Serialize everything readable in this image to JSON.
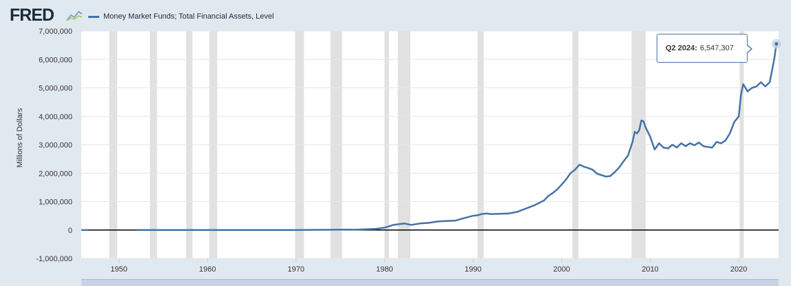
{
  "header": {
    "logo_text": "FRED",
    "logo_icon": "line-chart-icon"
  },
  "chart_data": {
    "type": "line",
    "title": "",
    "xlabel": "",
    "ylabel": "Millions of Dollars",
    "xlim": [
      1945.75,
      2024.5
    ],
    "ylim": [
      -1000000,
      7000000
    ],
    "y_ticks": [
      -1000000,
      0,
      1000000,
      2000000,
      3000000,
      4000000,
      5000000,
      6000000,
      7000000
    ],
    "y_tick_labels": [
      "-1,000,000",
      "0",
      "1,000,000",
      "2,000,000",
      "3,000,000",
      "4,000,000",
      "5,000,000",
      "6,000,000",
      "7,000,000"
    ],
    "x_ticks": [
      1950,
      1960,
      1970,
      1980,
      1990,
      2000,
      2010,
      2020
    ],
    "x_tick_labels": [
      "1950",
      "1960",
      "1970",
      "1980",
      "1990",
      "2000",
      "2010",
      "2020"
    ],
    "grid": true,
    "legend_position": "top-left",
    "series": [
      {
        "name": "Money Market Funds; Total Financial Assets, Level",
        "color": "#4572a7",
        "x": [
          1945.75,
          1946.5,
          1952.0,
          1960,
          1970,
          1975,
          1977,
          1979,
          1980,
          1981,
          1981.5,
          1982.25,
          1983,
          1984,
          1985,
          1986,
          1987,
          1988,
          1989,
          1990,
          1990.5,
          1991,
          1991.5,
          1992,
          1993,
          1994,
          1995,
          1996,
          1997,
          1998,
          1998.5,
          1999,
          1999.5,
          2000,
          2000.5,
          2001,
          2001.5,
          2002,
          2002.5,
          2003,
          2003.5,
          2004,
          2005,
          2005.5,
          2006,
          2006.5,
          2007,
          2007.5,
          2008,
          2008.25,
          2008.5,
          2008.75,
          2009,
          2009.25,
          2009.5,
          2010,
          2010.5,
          2011,
          2011.5,
          2012,
          2012.5,
          2013,
          2013.5,
          2014,
          2014.5,
          2015,
          2015.5,
          2016,
          2016.5,
          2017,
          2017.5,
          2018,
          2018.5,
          2019,
          2019.5,
          2020,
          2020.25,
          2020.5,
          2021,
          2021.5,
          2022,
          2022.5,
          2023,
          2023.5,
          2024,
          2024.25
        ],
        "y": [
          0,
          0,
          0,
          0,
          0,
          10000,
          15000,
          40000,
          80000,
          180000,
          200000,
          230000,
          180000,
          230000,
          250000,
          300000,
          320000,
          330000,
          420000,
          500000,
          520000,
          560000,
          580000,
          560000,
          570000,
          580000,
          640000,
          760000,
          880000,
          1040000,
          1200000,
          1300000,
          1430000,
          1600000,
          1780000,
          2000000,
          2120000,
          2300000,
          2230000,
          2180000,
          2120000,
          1980000,
          1880000,
          1900000,
          2040000,
          2200000,
          2420000,
          2620000,
          3100000,
          3450000,
          3400000,
          3500000,
          3850000,
          3820000,
          3600000,
          3280000,
          2830000,
          3050000,
          2900000,
          2870000,
          3000000,
          2900000,
          3050000,
          2950000,
          3050000,
          2980000,
          3080000,
          2950000,
          2920000,
          2900000,
          3100000,
          3050000,
          3150000,
          3400000,
          3800000,
          4000000,
          4750000,
          5130000,
          4880000,
          5000000,
          5050000,
          5200000,
          5050000,
          5200000,
          6000000,
          6547307
        ]
      }
    ],
    "recessions": [
      [
        1948.9,
        1949.8
      ],
      [
        1953.5,
        1954.3
      ],
      [
        1957.6,
        1958.3
      ],
      [
        1960.2,
        1961.1
      ],
      [
        1969.9,
        1970.9
      ],
      [
        1973.9,
        1975.2
      ],
      [
        1980.0,
        1980.5
      ],
      [
        1981.5,
        1982.9
      ],
      [
        1990.5,
        1991.2
      ],
      [
        2001.2,
        2001.9
      ],
      [
        2007.9,
        2009.5
      ],
      [
        2020.1,
        2020.4
      ]
    ],
    "annotations": [
      {
        "label": "Q2 2024:",
        "value": "6,547,307"
      }
    ]
  }
}
